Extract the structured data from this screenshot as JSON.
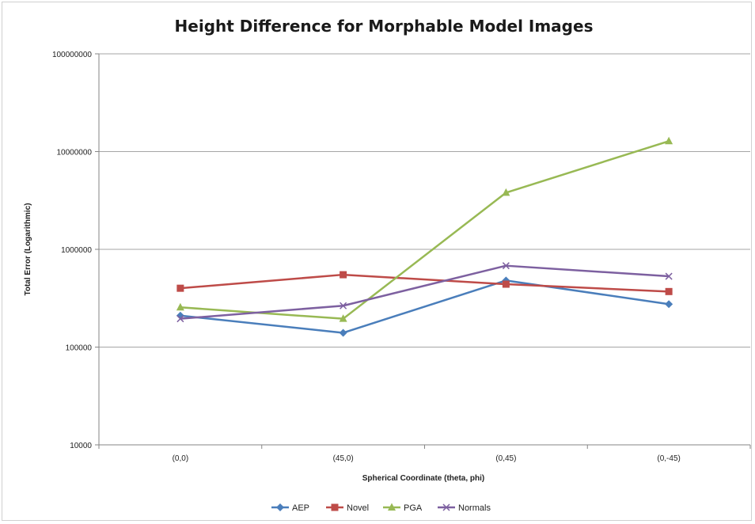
{
  "chart_data": {
    "type": "line",
    "title": "Height Difference for Morphable Model Images",
    "xlabel": "Spherical Coordinate (theta, phi)",
    "ylabel": "Total Error (Logarithmic)",
    "yscale": "log",
    "ylim": [
      10000,
      100000000
    ],
    "y_ticks": [
      "10000",
      "100000",
      "1000000",
      "10000000",
      "100000000"
    ],
    "categories": [
      "(0,0)",
      "(45,0)",
      "(0,45)",
      "(0,-45)"
    ],
    "grid": "horizontal",
    "legend_position": "bottom",
    "series": [
      {
        "name": "AEP",
        "color": "#4a7ebb",
        "marker": "diamond",
        "values": [
          210000,
          140000,
          480000,
          275000
        ]
      },
      {
        "name": "Novel",
        "color": "#be4b48",
        "marker": "square",
        "values": [
          400000,
          550000,
          440000,
          370000
        ]
      },
      {
        "name": "PGA",
        "color": "#98b954",
        "marker": "triangle",
        "values": [
          255000,
          195000,
          3800000,
          12800000
        ]
      },
      {
        "name": "Normals",
        "color": "#7d60a0",
        "marker": "x",
        "values": [
          195000,
          265000,
          680000,
          530000
        ]
      }
    ]
  }
}
